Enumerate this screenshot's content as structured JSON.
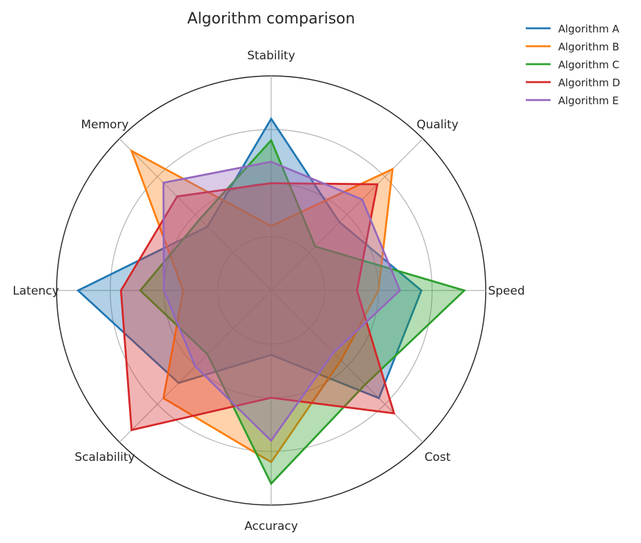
{
  "chart_data": {
    "type": "radar",
    "title": "Algorithm comparison",
    "axes": [
      "Speed",
      "Quality",
      "Stability",
      "Memory",
      "Latency",
      "Scalability",
      "Accuracy",
      "Cost"
    ],
    "rmax": 1.0,
    "grid_levels": [
      0.25,
      0.5,
      0.75,
      1.0
    ],
    "grid": true,
    "legend_position": "top-right",
    "series": [
      {
        "name": "Algorithm A",
        "color": "#1f77b4",
        "values": [
          0.7,
          0.45,
          0.8,
          0.42,
          0.9,
          0.61,
          0.3,
          0.71
        ]
      },
      {
        "name": "Algorithm B",
        "color": "#ff7f0e",
        "values": [
          0.5,
          0.8,
          0.3,
          0.92,
          0.41,
          0.71,
          0.8,
          0.46
        ]
      },
      {
        "name": "Algorithm C",
        "color": "#2ca02c",
        "values": [
          0.9,
          0.29,
          0.7,
          0.47,
          0.61,
          0.42,
          0.9,
          0.62
        ]
      },
      {
        "name": "Algorithm D",
        "color": "#d62728",
        "values": [
          0.4,
          0.7,
          0.5,
          0.62,
          0.7,
          0.92,
          0.5,
          0.81
        ]
      },
      {
        "name": "Algorithm E",
        "color": "#9467bd",
        "values": [
          0.6,
          0.6,
          0.6,
          0.71,
          0.5,
          0.5,
          0.7,
          0.41
        ]
      }
    ]
  }
}
